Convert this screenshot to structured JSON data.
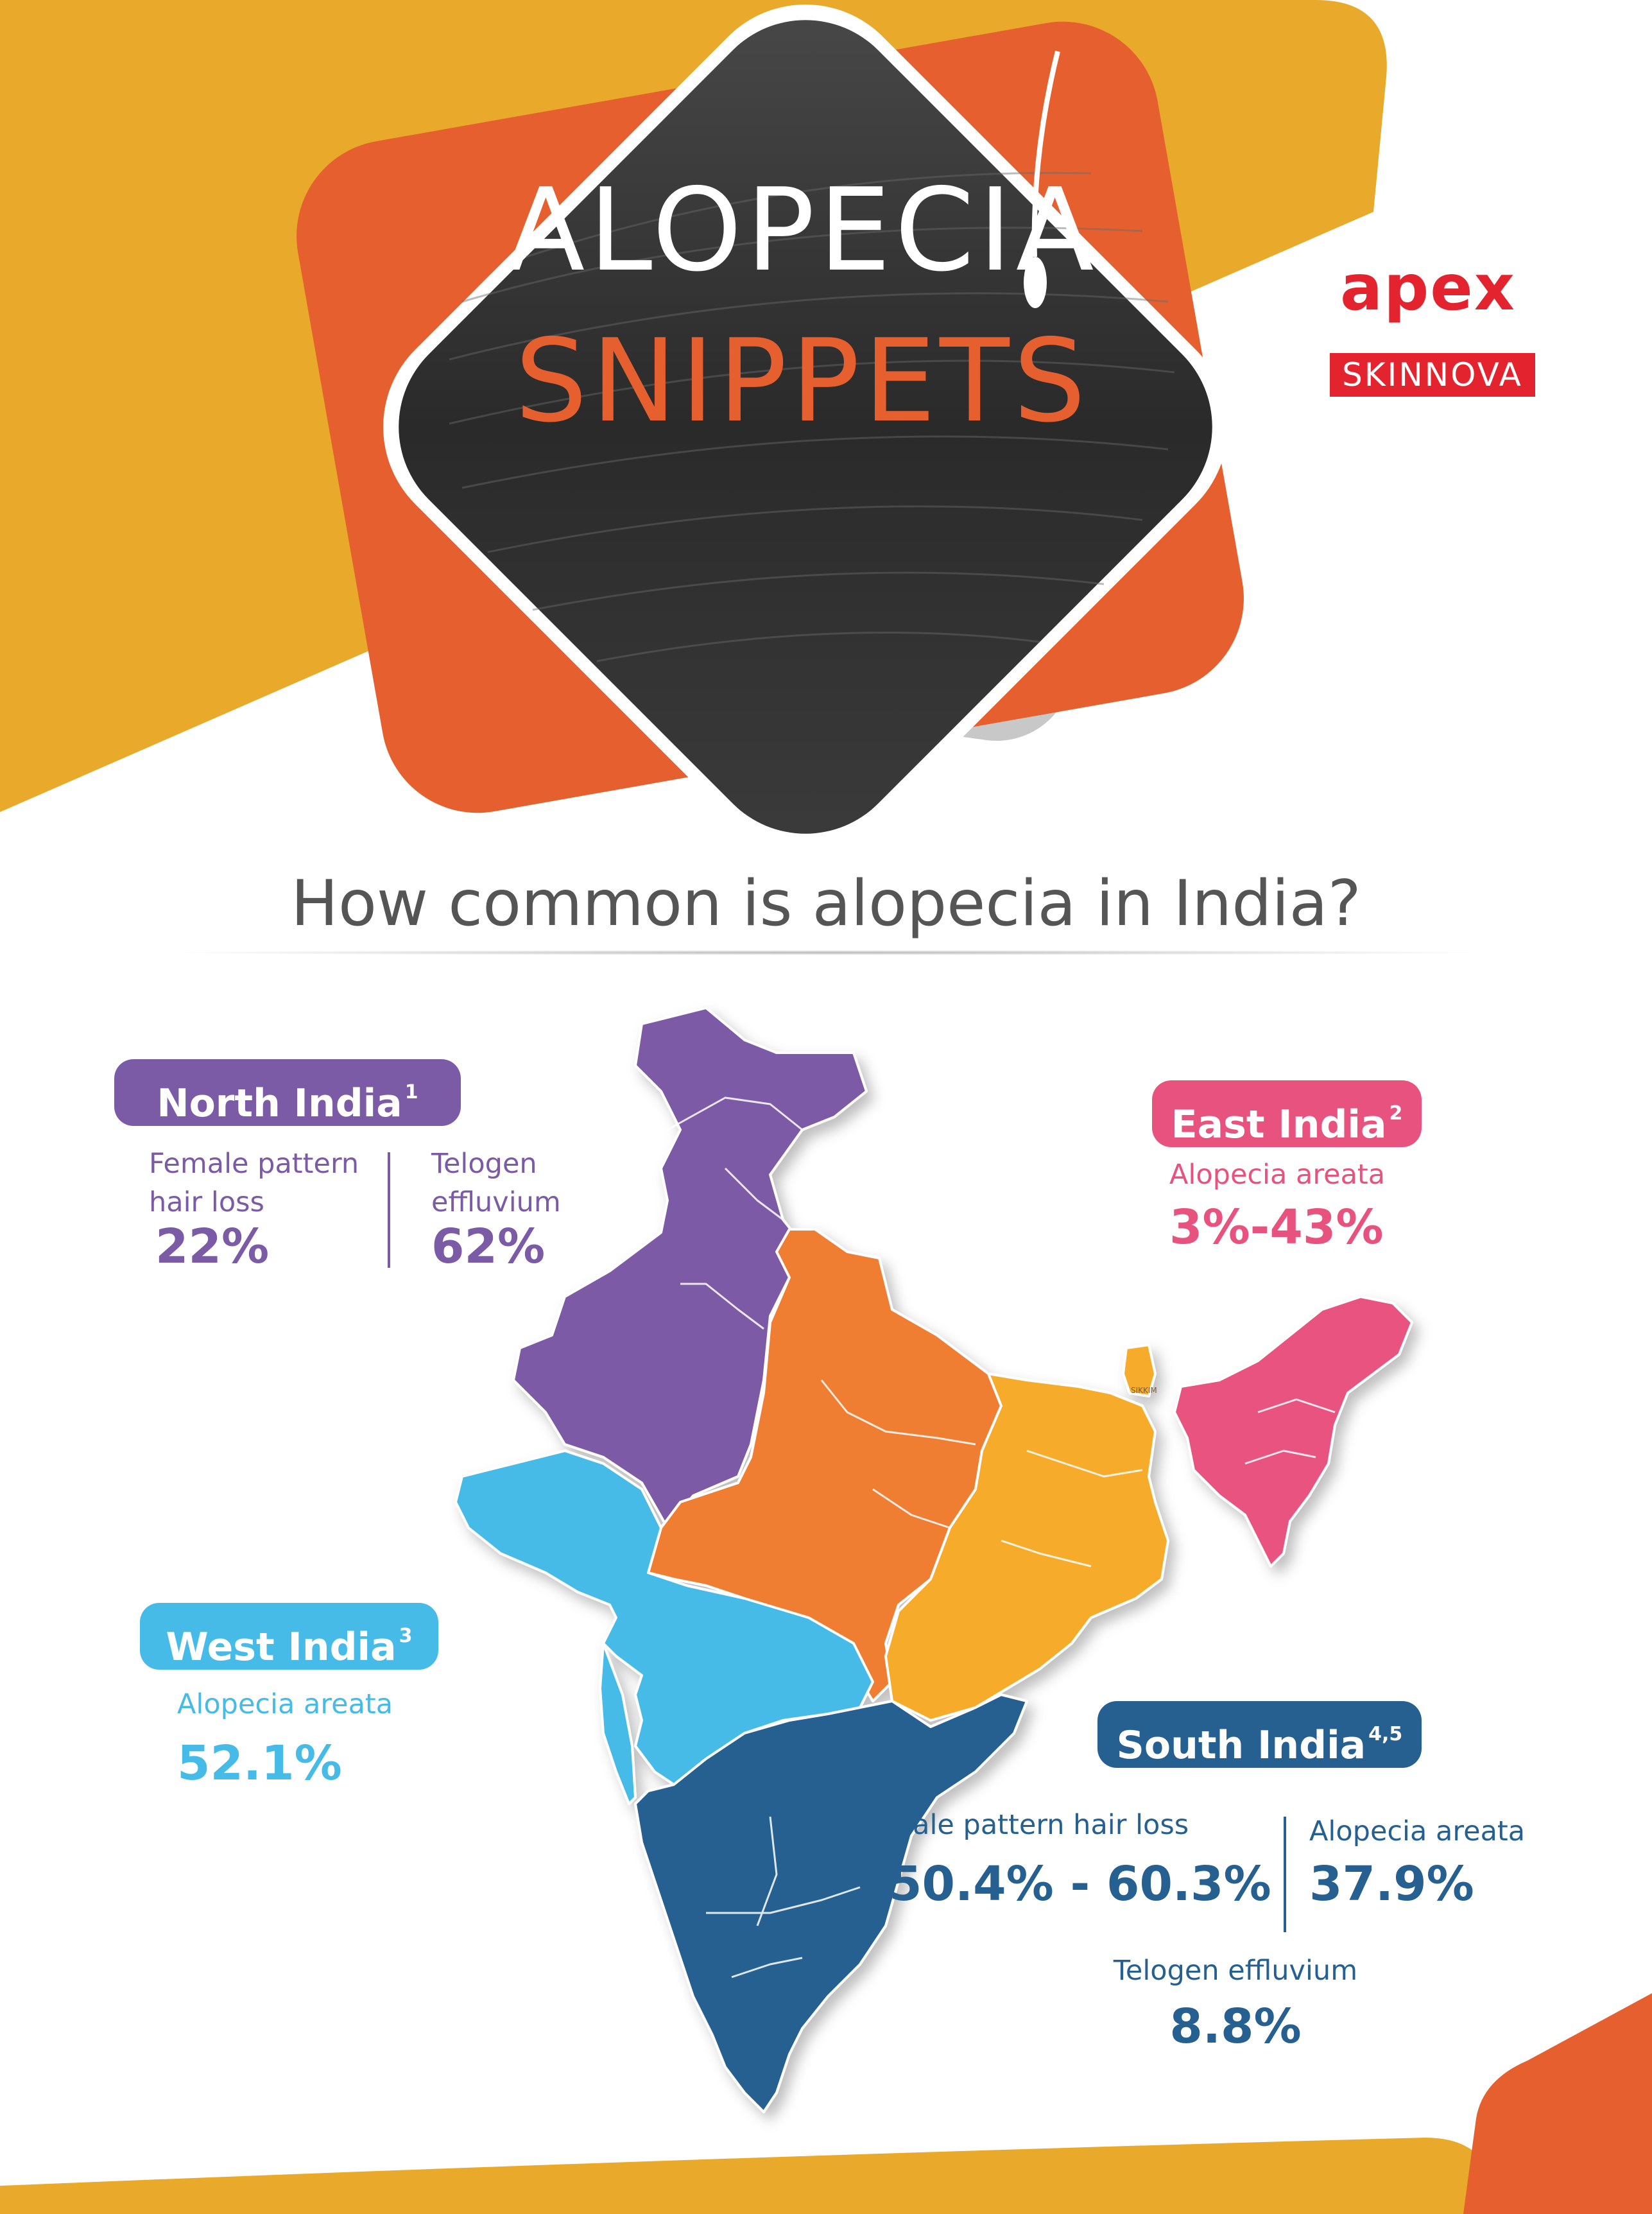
{
  "header": {
    "title_line1": "ALOPECIA",
    "title_line2": "SNIPPETS"
  },
  "brand": {
    "name": "apex",
    "sub": "SKINNOVA"
  },
  "question": "How common is alopecia in India?",
  "map": {
    "sikkim_label": "SIKKIM"
  },
  "regions": {
    "north": {
      "title": "North India",
      "ref": "1",
      "stats": [
        {
          "label_line1": "Female pattern",
          "label_line2": "hair loss",
          "value": "22%"
        },
        {
          "label_line1": "Telogen",
          "label_line2": "effluvium",
          "value": "62%"
        }
      ]
    },
    "east": {
      "title": "East India",
      "ref": "2",
      "stats": [
        {
          "label": "Alopecia areata",
          "value": "3%-43%"
        }
      ]
    },
    "west": {
      "title": "West India",
      "ref": "3",
      "stats": [
        {
          "label": "Alopecia areata",
          "value": "52.1%"
        }
      ]
    },
    "south": {
      "title": "South India",
      "ref": "4,5",
      "stats": [
        {
          "label": "Male pattern hair loss",
          "value": "50.4% - 60.3%"
        },
        {
          "label": "Alopecia areata",
          "value": "37.9%"
        },
        {
          "label": "Telogen effluvium",
          "value": "8.8%"
        }
      ]
    }
  },
  "colors": {
    "yellow": "#e9a92b",
    "orange": "#e5602e",
    "purple": "#7b5aa6",
    "pink": "#e8527f",
    "sky": "#46bbe7",
    "navy": "#256090",
    "amber": "#f6ac2a",
    "map_orange": "#ef7d32",
    "brand_red": "#e3242f"
  }
}
